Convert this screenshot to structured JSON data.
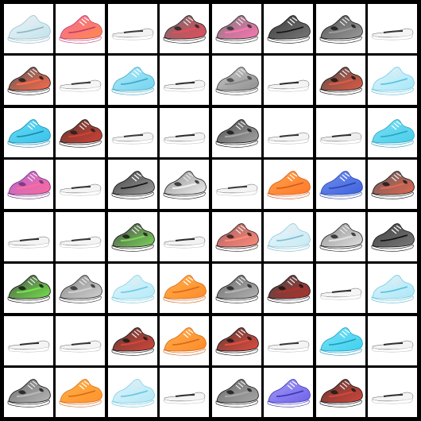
{
  "grid": {
    "rows": 8,
    "cols": 8,
    "background": "#000000",
    "cell_background": "#ffffff",
    "cells": [
      {
        "r": 0,
        "c": 0,
        "style": "light",
        "main": "#e6f3f7",
        "accent": "#b9dde8",
        "dark": "#8fb6c4"
      },
      {
        "r": 0,
        "c": 1,
        "style": "solid",
        "main": "#f26a9a",
        "accent": "#ff8a4a",
        "dark": "#c43d6c"
      },
      {
        "r": 0,
        "c": 2,
        "style": "flat",
        "main": "#f2f2f2",
        "accent": "#cfcfcf",
        "dark": "#3a3a3a"
      },
      {
        "r": 0,
        "c": 3,
        "style": "patterned",
        "main": "#6f6f6f",
        "accent": "#e84b5a",
        "dark": "#1f1f1f"
      },
      {
        "r": 0,
        "c": 4,
        "style": "patterned",
        "main": "#7a7a7a",
        "accent": "#ff76b3",
        "dark": "#2a2a2a"
      },
      {
        "r": 0,
        "c": 5,
        "style": "solid",
        "main": "#3b3b3b",
        "accent": "#777777",
        "dark": "#151515"
      },
      {
        "r": 0,
        "c": 6,
        "style": "patterned",
        "main": "#555555",
        "accent": "#9a9a9a",
        "dark": "#141414"
      },
      {
        "r": 0,
        "c": 7,
        "style": "flat",
        "main": "#f4f4f4",
        "accent": "#d7d7d7",
        "dark": "#333333"
      },
      {
        "r": 1,
        "c": 0,
        "style": "patterned",
        "main": "#5a5a5a",
        "accent": "#ff6a4a",
        "dark": "#161616"
      },
      {
        "r": 1,
        "c": 1,
        "style": "flat",
        "main": "#f5f5f5",
        "accent": "#dcdcdc",
        "dark": "#3a3a3a"
      },
      {
        "r": 1,
        "c": 2,
        "style": "solid",
        "main": "#aee8f7",
        "accent": "#74d4f0",
        "dark": "#3ea8c7"
      },
      {
        "r": 1,
        "c": 3,
        "style": "flat",
        "main": "#f4f4f4",
        "accent": "#d6d6d6",
        "dark": "#2f2f2f"
      },
      {
        "r": 1,
        "c": 4,
        "style": "patterned",
        "main": "#c9c9c9",
        "accent": "#8e8e8e",
        "dark": "#3b3b3b"
      },
      {
        "r": 1,
        "c": 5,
        "style": "flat",
        "main": "#f4f4f4",
        "accent": "#dddddd",
        "dark": "#2a2a2a"
      },
      {
        "r": 1,
        "c": 6,
        "style": "patterned",
        "main": "#4f4f4f",
        "accent": "#e25a43",
        "dark": "#121212"
      },
      {
        "r": 1,
        "c": 7,
        "style": "light",
        "main": "#d9f3fb",
        "accent": "#98e3f6",
        "dark": "#5ac2de"
      },
      {
        "r": 2,
        "c": 0,
        "style": "solid",
        "main": "#68d9f2",
        "accent": "#38c4ea",
        "dark": "#1c8ab0"
      },
      {
        "r": 2,
        "c": 1,
        "style": "patterned",
        "main": "#5a3b35",
        "accent": "#d24035",
        "dark": "#1b1b1b"
      },
      {
        "r": 2,
        "c": 2,
        "style": "flat",
        "main": "#f4f4f4",
        "accent": "#d8d8d8",
        "dark": "#3a3a3a"
      },
      {
        "r": 2,
        "c": 3,
        "style": "flat",
        "main": "#f2f2f2",
        "accent": "#d6d6d6",
        "dark": "#2a2a2a"
      },
      {
        "r": 2,
        "c": 4,
        "style": "patterned",
        "main": "#4d4d4d",
        "accent": "#a4a4a4",
        "dark": "#121212"
      },
      {
        "r": 2,
        "c": 5,
        "style": "flat",
        "main": "#f3f3f3",
        "accent": "#d8d8d8",
        "dark": "#353535"
      },
      {
        "r": 2,
        "c": 6,
        "style": "flat",
        "main": "#eeeeee",
        "accent": "#cdcdcd",
        "dark": "#2f2f2f"
      },
      {
        "r": 2,
        "c": 7,
        "style": "solid",
        "main": "#7ae0f4",
        "accent": "#49cde9",
        "dark": "#2aa5c5"
      },
      {
        "r": 3,
        "c": 0,
        "style": "patterned",
        "main": "#b16ad6",
        "accent": "#ff6a9a",
        "dark": "#6b2f7a"
      },
      {
        "r": 3,
        "c": 1,
        "style": "flat",
        "main": "#f4f4f4",
        "accent": "#d6d6d6",
        "dark": "#343434"
      },
      {
        "r": 3,
        "c": 2,
        "style": "solid",
        "main": "#454545",
        "accent": "#9a9a9a",
        "dark": "#131313"
      },
      {
        "r": 3,
        "c": 3,
        "style": "patterned",
        "main": "#8d8d8d",
        "accent": "#f0f0f0",
        "dark": "#202020"
      },
      {
        "r": 3,
        "c": 4,
        "style": "flat",
        "main": "#f3f3f3",
        "accent": "#d6d6d6",
        "dark": "#3a3a3a"
      },
      {
        "r": 3,
        "c": 5,
        "style": "solid",
        "main": "#ffa24a",
        "accent": "#ff7a2a",
        "dark": "#d45b1b"
      },
      {
        "r": 3,
        "c": 6,
        "style": "solid",
        "main": "#6f8df0",
        "accent": "#3f63dd",
        "dark": "#2a46a8"
      },
      {
        "r": 3,
        "c": 7,
        "style": "patterned",
        "main": "#5d5d5d",
        "accent": "#e46752",
        "dark": "#141414"
      },
      {
        "r": 4,
        "c": 0,
        "style": "flat",
        "main": "#f4f4f4",
        "accent": "#d6d6d6",
        "dark": "#2f2f2f"
      },
      {
        "r": 4,
        "c": 1,
        "style": "flat",
        "main": "#f4f4f4",
        "accent": "#d9d9d9",
        "dark": "#353535"
      },
      {
        "r": 4,
        "c": 2,
        "style": "patterned",
        "main": "#4b4b4b",
        "accent": "#7bd45a",
        "dark": "#141414"
      },
      {
        "r": 4,
        "c": 3,
        "style": "flat",
        "main": "#f2f2f2",
        "accent": "#d5d5d5",
        "dark": "#2a2a2a"
      },
      {
        "r": 4,
        "c": 4,
        "style": "patterned",
        "main": "#a36161",
        "accent": "#ff8a7a",
        "dark": "#2a1a1a"
      },
      {
        "r": 4,
        "c": 5,
        "style": "light",
        "main": "#e6f5fa",
        "accent": "#bfe6f2",
        "dark": "#7bbfd1"
      },
      {
        "r": 4,
        "c": 6,
        "style": "patterned",
        "main": "#8f8f8f",
        "accent": "#e0e0e0",
        "dark": "#1f1f1f"
      },
      {
        "r": 4,
        "c": 7,
        "style": "solid",
        "main": "#3f3f3f",
        "accent": "#7a7a7a",
        "dark": "#111111"
      },
      {
        "r": 5,
        "c": 0,
        "style": "patterned",
        "main": "#4f4f4f",
        "accent": "#73e44a",
        "dark": "#111111"
      },
      {
        "r": 5,
        "c": 1,
        "style": "patterned",
        "main": "#8a8a8a",
        "accent": "#cfcfcf",
        "dark": "#2b2b2b"
      },
      {
        "r": 5,
        "c": 2,
        "style": "light",
        "main": "#daf3fb",
        "accent": "#a9e7f6",
        "dark": "#6bc9e2"
      },
      {
        "r": 5,
        "c": 3,
        "style": "solid",
        "main": "#ffb04a",
        "accent": "#ff8a2a",
        "dark": "#d86a1a"
      },
      {
        "r": 5,
        "c": 4,
        "style": "patterned",
        "main": "#6a6a6a",
        "accent": "#b3b3b3",
        "dark": "#1b1b1b"
      },
      {
        "r": 5,
        "c": 5,
        "style": "patterned",
        "main": "#4a4a4a",
        "accent": "#b3312b",
        "dark": "#111111"
      },
      {
        "r": 5,
        "c": 6,
        "style": "flat",
        "main": "#f5f5f5",
        "accent": "#dddddd",
        "dark": "#2f2f2f"
      },
      {
        "r": 5,
        "c": 7,
        "style": "light",
        "main": "#d7f3fb",
        "accent": "#9fe2f5",
        "dark": "#5ac0dc"
      },
      {
        "r": 6,
        "c": 0,
        "style": "flat",
        "main": "#f4f4f4",
        "accent": "#d6d6d6",
        "dark": "#2f2f2f"
      },
      {
        "r": 6,
        "c": 1,
        "style": "flat",
        "main": "#f4f4f4",
        "accent": "#d6d6d6",
        "dark": "#353535"
      },
      {
        "r": 6,
        "c": 2,
        "style": "patterned",
        "main": "#5a3a35",
        "accent": "#d5453a",
        "dark": "#151515"
      },
      {
        "r": 6,
        "c": 3,
        "style": "solid",
        "main": "#ffae4a",
        "accent": "#ff8a2a",
        "dark": "#d56a1a"
      },
      {
        "r": 6,
        "c": 4,
        "style": "patterned",
        "main": "#5a3a35",
        "accent": "#e24d3f",
        "dark": "#151515"
      },
      {
        "r": 6,
        "c": 5,
        "style": "flat",
        "main": "#f4f4f4",
        "accent": "#d6d6d6",
        "dark": "#353535"
      },
      {
        "r": 6,
        "c": 6,
        "style": "solid",
        "main": "#79e2f6",
        "accent": "#3fd0ee",
        "dark": "#1f9fc3"
      },
      {
        "r": 6,
        "c": 7,
        "style": "flat",
        "main": "#f4f4f4",
        "accent": "#d6d6d6",
        "dark": "#2f2f2f"
      },
      {
        "r": 7,
        "c": 0,
        "style": "patterned",
        "main": "#6b6b6b",
        "accent": "#b8b8b8",
        "dark": "#151515"
      },
      {
        "r": 7,
        "c": 1,
        "style": "solid",
        "main": "#ffb24a",
        "accent": "#ff922a",
        "dark": "#d96c1a"
      },
      {
        "r": 7,
        "c": 2,
        "style": "light",
        "main": "#d8f2fb",
        "accent": "#a8e4f5",
        "dark": "#69c6df"
      },
      {
        "r": 7,
        "c": 3,
        "style": "flat",
        "main": "#f4f4f4",
        "accent": "#d6d6d6",
        "dark": "#2f2f2f"
      },
      {
        "r": 7,
        "c": 4,
        "style": "patterned",
        "main": "#6a6a6a",
        "accent": "#a7a7a7",
        "dark": "#141414"
      },
      {
        "r": 7,
        "c": 5,
        "style": "solid",
        "main": "#a49af7",
        "accent": "#6f63e8",
        "dark": "#3e36b4"
      },
      {
        "r": 7,
        "c": 6,
        "style": "patterned",
        "main": "#5a3a35",
        "accent": "#d5453a",
        "dark": "#151515"
      },
      {
        "r": 7,
        "c": 7,
        "style": "flat",
        "main": "#f4f4f4",
        "accent": "#d6d6d6",
        "dark": "#2f2f2f"
      }
    ]
  }
}
